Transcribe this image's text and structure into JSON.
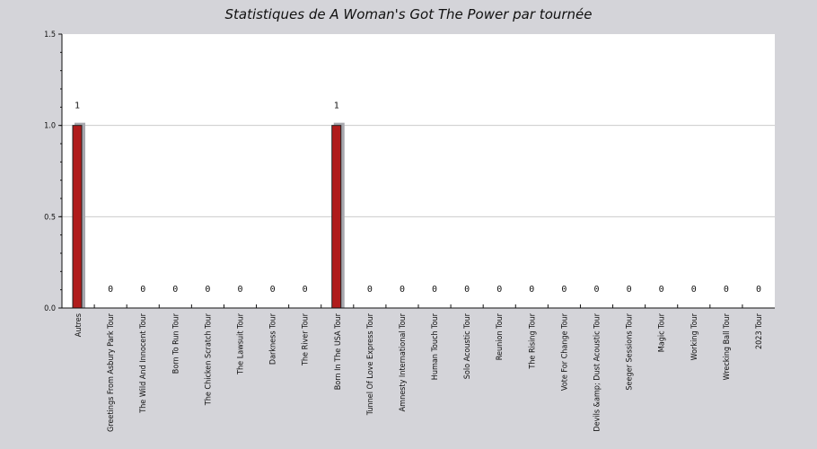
{
  "chart_data": {
    "type": "bar",
    "title": "Statistiques de A Woman's Got The Power par tournée",
    "xlabel": "",
    "ylabel": "",
    "ylim": [
      0,
      1.5
    ],
    "yticks": [
      "0.0",
      "0.5",
      "1.0",
      "1.5"
    ],
    "grid": true,
    "categories": [
      "Autres",
      "Greetings From Asbury Park Tour",
      "The Wild And Innocent Tour",
      "Born To Run Tour",
      "The Chicken Scratch Tour",
      "The Lawsuit Tour",
      "Darkness Tour",
      "The River Tour",
      "Born In The USA Tour",
      "Tunnel Of Love Express Tour",
      "Amnesty International Tour",
      "Human Touch Tour",
      "Solo Acoustic Tour",
      "Reunion Tour",
      "The Rising Tour",
      "Vote For Change Tour",
      "Devils &amp; Dust Acoustic Tour",
      "Seeger Sessions Tour",
      "Magic Tour",
      "Working Tour",
      "Wrecking Ball Tour",
      "2023 Tour"
    ],
    "values": [
      1,
      0,
      0,
      0,
      0,
      0,
      0,
      0,
      1,
      0,
      0,
      0,
      0,
      0,
      0,
      0,
      0,
      0,
      0,
      0,
      0,
      0
    ],
    "colors": {
      "bar": "#b01c1c",
      "shadow": "#a8a8ae",
      "grid": "#cccccc",
      "plot_bg": "#ffffff",
      "page_bg": "#d4d4d9"
    }
  }
}
